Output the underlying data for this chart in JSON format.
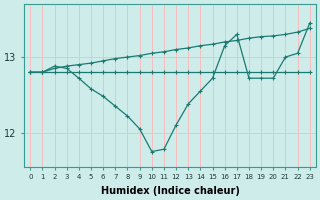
{
  "xlabel": "Humidex (Indice chaleur)",
  "background_color": "#ceecea",
  "line_color": "#1a7a72",
  "grid_color": "#f5bebe",
  "x": [
    0,
    1,
    2,
    3,
    4,
    5,
    6,
    7,
    8,
    9,
    10,
    11,
    12,
    13,
    14,
    15,
    16,
    17,
    18,
    19,
    20,
    21,
    22,
    23
  ],
  "line_flat": [
    12.8,
    12.8,
    12.8,
    12.8,
    12.8,
    12.8,
    12.8,
    12.8,
    12.8,
    12.8,
    12.8,
    12.8,
    12.8,
    12.8,
    12.8,
    12.8,
    12.8,
    12.8,
    12.8,
    12.8,
    12.8,
    12.8,
    12.8,
    12.8
  ],
  "line_rise": [
    12.8,
    12.8,
    12.85,
    12.88,
    12.9,
    12.92,
    12.95,
    12.98,
    13.0,
    13.02,
    13.05,
    13.07,
    13.1,
    13.12,
    13.15,
    13.17,
    13.2,
    13.22,
    13.25,
    13.27,
    13.28,
    13.3,
    13.33,
    13.38
  ],
  "line_dip": [
    12.8,
    12.8,
    12.88,
    12.85,
    12.72,
    12.58,
    12.48,
    12.35,
    12.22,
    12.05,
    11.75,
    11.78,
    12.1,
    12.38,
    12.55,
    12.72,
    13.15,
    13.3,
    12.72,
    12.72,
    12.72,
    13.0,
    13.05,
    13.45
  ],
  "ylim": [
    11.55,
    13.7
  ],
  "yticks": [
    12,
    13
  ],
  "xlim": [
    -0.5,
    23.5
  ]
}
